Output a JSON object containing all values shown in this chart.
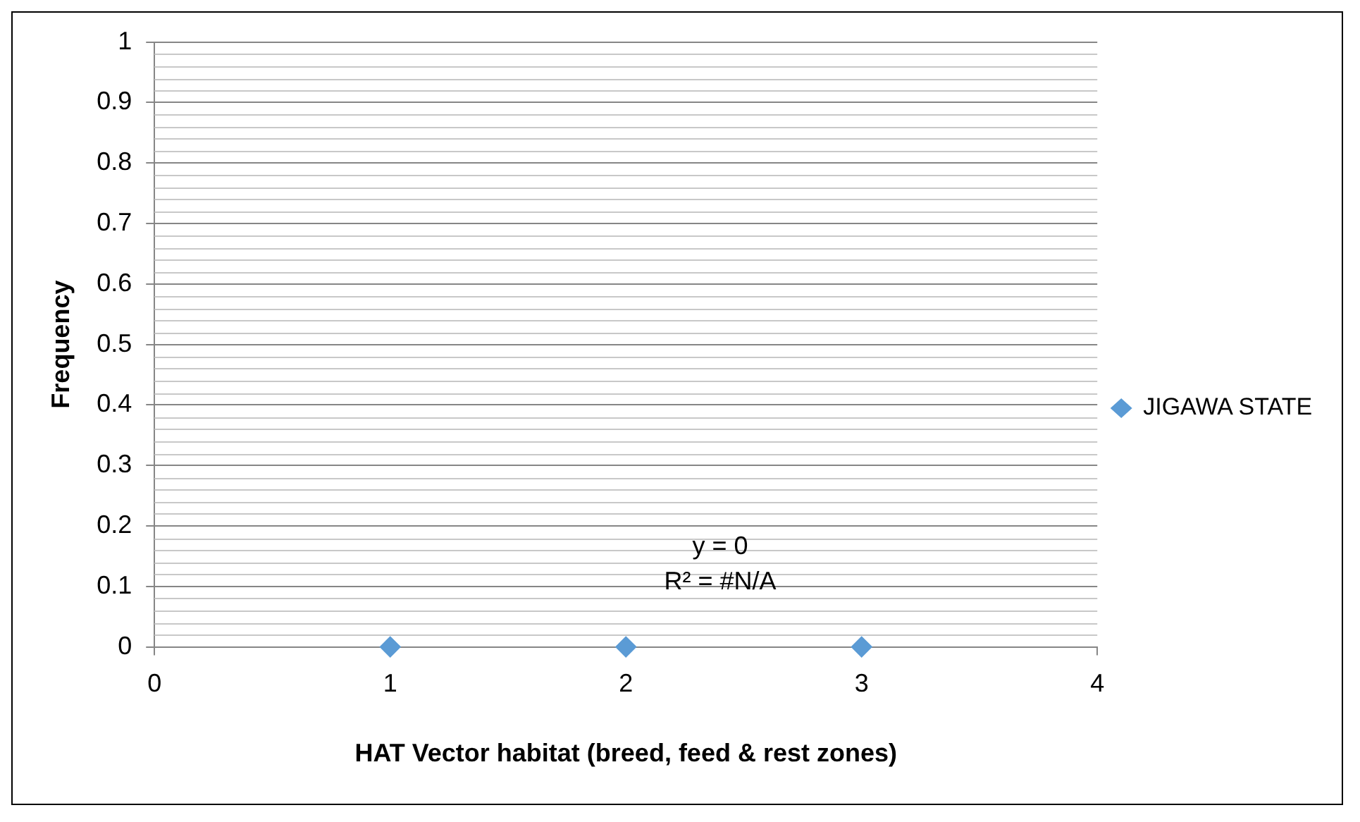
{
  "chart_data": {
    "type": "scatter",
    "xlabel": "HAT Vector habitat (breed, feed & rest zones)",
    "ylabel": "Frequency",
    "x": [
      1,
      2,
      3
    ],
    "series": [
      {
        "name": "JIGAWA STATE",
        "color": "#5b9bd5",
        "values": [
          0,
          0,
          0
        ]
      }
    ],
    "xlim": [
      0,
      4
    ],
    "xticks": [
      0,
      1,
      2,
      3,
      4
    ],
    "ylim": [
      0,
      1
    ],
    "yticks": [
      0,
      0.1,
      0.2,
      0.3,
      0.4,
      0.5,
      0.6,
      0.7,
      0.8,
      0.9,
      1
    ],
    "grid": "y",
    "legend": "right",
    "marker": "diamond",
    "annotations": [
      "y = 0",
      "R² = #N/A"
    ]
  }
}
